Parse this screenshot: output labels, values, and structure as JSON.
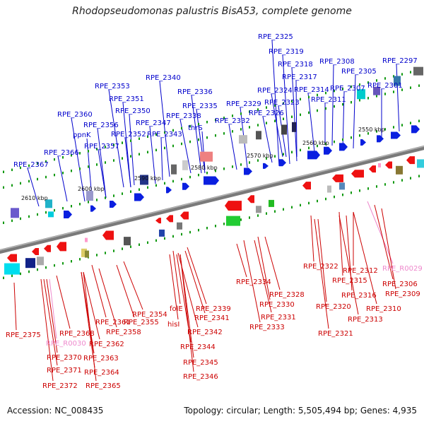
{
  "title": "Rhodopseudomonas palustris BisA53, complete genome",
  "footer": {
    "accession": "Accession: NC_008435",
    "info": "Topology: circular; Length: 5,505,494 bp; Genes: 4,935"
  },
  "colors": {
    "forward_label": "#0000cc",
    "reverse_label": "#cc0000",
    "rna_label": "#ee88cc",
    "backbone": "#7a7a7a",
    "tick": "#119911"
  },
  "kbp_ticks": [
    "2550 kbp",
    "2560 kbp",
    "2570 kbp",
    "2580 kbp",
    "2590 kbp",
    "2600 kbp",
    "2610 kbp"
  ],
  "top_labels": [
    "RPE_2325",
    "RPE_2319",
    "RPE_2318",
    "RPE_2308",
    "RPE_2297",
    "RPE_2305",
    "RPE_2340",
    "RPE_2317",
    "RPE_2353",
    "RPE_2324",
    "RPE_2314",
    "RPE_2307",
    "RPE_2301",
    "RPE_2336",
    "RPE_2351",
    "RPE_2323",
    "RPE_2311",
    "RPE_2335",
    "RPE_2329",
    "RPE_2350",
    "RPE_2326",
    "RPE_2360",
    "RPE_2338",
    "RPE_2347",
    "RPE_2356",
    "RPE_2332",
    "thrS",
    "ppnK",
    "RPE_2352",
    "RPE_2343",
    "RPE_2357",
    "RPE_2366",
    "RPE_2367"
  ],
  "bottom_labels": [
    "RPE_2322",
    "RPE_2312",
    "RPE_R0029",
    "RPE_2315",
    "RPE_2306",
    "RPE_2316",
    "RPE_2309",
    "RPE_2334",
    "RPE_2328",
    "RPE_2320",
    "RPE_2310",
    "RPE_2330",
    "RPE_2339",
    "RPE_2331",
    "RPE_2313",
    "RPE_2354",
    "folE",
    "RPE_2341",
    "RPE_2361",
    "RPE_2333",
    "RPE_2321",
    "RPE_2355",
    "hisI",
    "RPE_2375",
    "RPE_2368",
    "RPE_2358",
    "RPE_2342",
    "RPE_R0030",
    "RPE_2362",
    "RPE_2344",
    "RPE_2370",
    "RPE_2363",
    "RPE_2345",
    "RPE_2371",
    "RPE_2364",
    "RPE_2346",
    "RPE_2372",
    "RPE_2365"
  ]
}
